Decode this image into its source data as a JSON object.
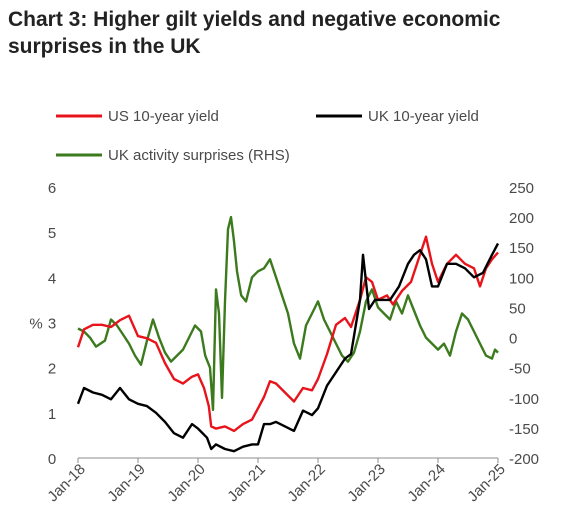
{
  "title_line1": "Chart 3: Higher gilt yields and negative economic",
  "title_line2": "surprises in the UK",
  "colors": {
    "us": "#e8141c",
    "uk": "#000000",
    "act": "#3c7a1e"
  },
  "chart_data": {
    "type": "line",
    "title": "Chart 3: Higher gilt yields and negative economic surprises in the UK",
    "ylabel": "%",
    "ylim": [
      0,
      6
    ],
    "y2lim": [
      -200,
      250
    ],
    "xlim": [
      2018.0,
      2025.0
    ],
    "x_ticks": [
      "Jan-18",
      "Jan-19",
      "Jan-20",
      "Jan-21",
      "Jan-22",
      "Jan-23",
      "Jan-24",
      "Jan-25"
    ],
    "y_ticks": [
      "0",
      "1",
      "2",
      "3",
      "4",
      "5",
      "6"
    ],
    "y2_ticks": [
      "-200",
      "-150",
      "-100",
      "-50",
      "0",
      "50",
      "100",
      "150",
      "200",
      "250"
    ],
    "legend": [
      "US 10-year yield",
      "UK 10-year yield",
      "UK activity surprises (RHS)"
    ],
    "legend_position": "top",
    "grid": false,
    "series": [
      {
        "name": "US 10-year yield",
        "axis": "left",
        "x": [
          2018.0,
          2018.1,
          2018.25,
          2018.4,
          2018.55,
          2018.7,
          2018.85,
          2019.0,
          2019.15,
          2019.3,
          2019.45,
          2019.6,
          2019.75,
          2019.9,
          2020.0,
          2020.1,
          2020.18,
          2020.22,
          2020.3,
          2020.45,
          2020.6,
          2020.75,
          2020.9,
          2021.0,
          2021.1,
          2021.2,
          2021.3,
          2021.45,
          2021.6,
          2021.75,
          2021.9,
          2022.0,
          2022.15,
          2022.3,
          2022.45,
          2022.55,
          2022.7,
          2022.8,
          2022.9,
          2023.0,
          2023.15,
          2023.25,
          2023.4,
          2023.55,
          2023.7,
          2023.8,
          2023.9,
          2024.0,
          2024.15,
          2024.3,
          2024.45,
          2024.6,
          2024.7,
          2024.8,
          2024.9,
          2025.0
        ],
        "values": [
          2.45,
          2.85,
          2.95,
          2.95,
          2.9,
          3.05,
          3.15,
          2.7,
          2.65,
          2.55,
          2.1,
          1.75,
          1.65,
          1.8,
          1.85,
          1.55,
          1.15,
          0.7,
          0.65,
          0.7,
          0.6,
          0.75,
          0.85,
          1.1,
          1.35,
          1.7,
          1.65,
          1.45,
          1.25,
          1.55,
          1.5,
          1.75,
          2.3,
          2.95,
          3.1,
          2.9,
          3.5,
          4.0,
          3.9,
          3.5,
          3.6,
          3.4,
          3.7,
          3.9,
          4.5,
          4.9,
          4.3,
          3.9,
          4.3,
          4.5,
          4.3,
          4.2,
          3.8,
          4.2,
          4.4,
          4.55
        ]
      },
      {
        "name": "UK 10-year yield",
        "axis": "left",
        "x": [
          2018.0,
          2018.1,
          2018.25,
          2018.4,
          2018.55,
          2018.7,
          2018.85,
          2019.0,
          2019.15,
          2019.3,
          2019.45,
          2019.6,
          2019.75,
          2019.9,
          2020.0,
          2020.15,
          2020.22,
          2020.3,
          2020.45,
          2020.6,
          2020.75,
          2020.9,
          2021.0,
          2021.1,
          2021.2,
          2021.3,
          2021.45,
          2021.6,
          2021.75,
          2021.9,
          2022.0,
          2022.15,
          2022.3,
          2022.45,
          2022.55,
          2022.7,
          2022.75,
          2022.85,
          2022.95,
          2023.05,
          2023.2,
          2023.35,
          2023.5,
          2023.6,
          2023.7,
          2023.8,
          2023.9,
          2024.0,
          2024.15,
          2024.3,
          2024.45,
          2024.6,
          2024.75,
          2024.9,
          2025.0
        ],
        "values": [
          1.2,
          1.55,
          1.45,
          1.4,
          1.3,
          1.55,
          1.3,
          1.2,
          1.15,
          1.0,
          0.8,
          0.55,
          0.45,
          0.75,
          0.65,
          0.45,
          0.2,
          0.3,
          0.2,
          0.15,
          0.25,
          0.3,
          0.3,
          0.75,
          0.75,
          0.8,
          0.7,
          0.6,
          1.05,
          0.95,
          1.1,
          1.6,
          1.9,
          2.2,
          2.3,
          3.5,
          4.5,
          3.3,
          3.5,
          3.5,
          3.5,
          3.8,
          4.3,
          4.5,
          4.6,
          4.4,
          3.8,
          3.8,
          4.3,
          4.3,
          4.2,
          4.0,
          4.1,
          4.5,
          4.75
        ]
      },
      {
        "name": "UK activity surprises (RHS)",
        "axis": "right",
        "x": [
          2018.0,
          2018.1,
          2018.2,
          2018.3,
          2018.45,
          2018.55,
          2018.65,
          2018.75,
          2018.85,
          2018.95,
          2019.05,
          2019.15,
          2019.25,
          2019.35,
          2019.45,
          2019.55,
          2019.65,
          2019.75,
          2019.85,
          2019.95,
          2020.05,
          2020.12,
          2020.2,
          2020.25,
          2020.3,
          2020.35,
          2020.4,
          2020.45,
          2020.5,
          2020.55,
          2020.6,
          2020.65,
          2020.72,
          2020.8,
          2020.9,
          2021.0,
          2021.1,
          2021.2,
          2021.3,
          2021.4,
          2021.5,
          2021.6,
          2021.7,
          2021.8,
          2021.9,
          2022.0,
          2022.1,
          2022.2,
          2022.3,
          2022.4,
          2022.5,
          2022.6,
          2022.7,
          2022.8,
          2022.9,
          2023.0,
          2023.1,
          2023.2,
          2023.3,
          2023.4,
          2023.5,
          2023.6,
          2023.7,
          2023.8,
          2023.9,
          2024.0,
          2024.1,
          2024.2,
          2024.3,
          2024.4,
          2024.5,
          2024.6,
          2024.7,
          2024.8,
          2024.9,
          2024.95,
          2025.0
        ],
        "values": [
          15,
          10,
          0,
          -15,
          -5,
          30,
          20,
          5,
          -10,
          -30,
          -45,
          -5,
          30,
          0,
          -25,
          -40,
          -30,
          -20,
          0,
          20,
          10,
          -30,
          -50,
          -120,
          80,
          40,
          -100,
          60,
          180,
          200,
          160,
          110,
          70,
          60,
          100,
          110,
          115,
          130,
          100,
          70,
          40,
          -10,
          -35,
          20,
          40,
          60,
          30,
          10,
          -10,
          -30,
          -40,
          -25,
          10,
          60,
          80,
          50,
          40,
          30,
          60,
          40,
          70,
          45,
          20,
          0,
          -10,
          -20,
          -10,
          -30,
          10,
          40,
          30,
          10,
          -10,
          -30,
          -35,
          -20,
          -25
        ]
      }
    ]
  }
}
